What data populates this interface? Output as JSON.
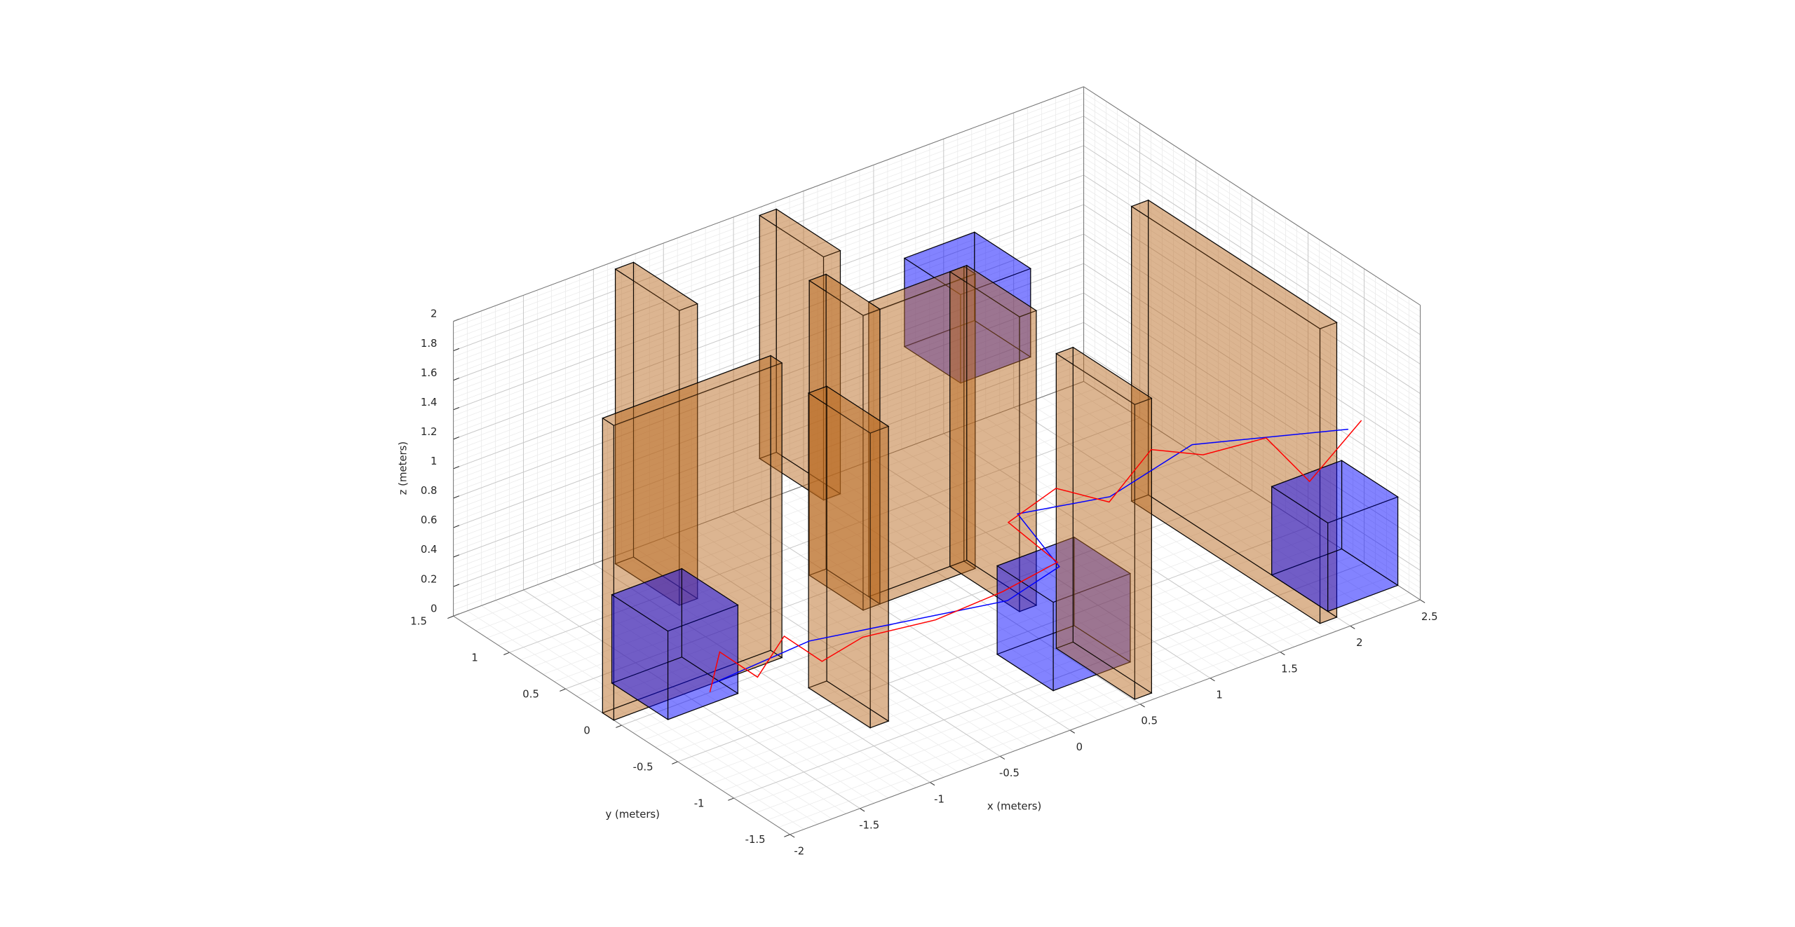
{
  "chart_data": {
    "type": "line3d",
    "xlabel": "x (meters)",
    "ylabel": "y (meters)",
    "zlabel": "z (meters)",
    "xlim": [
      -2,
      2.5
    ],
    "ylim": [
      -1.5,
      1.5
    ],
    "zlim": [
      0,
      2
    ],
    "xticks": [
      -2,
      -1.5,
      -1,
      -0.5,
      0,
      0.5,
      1,
      1.5,
      2,
      2.5
    ],
    "yticks": [
      -1.5,
      -1,
      -0.5,
      0,
      0.5,
      1,
      1.5
    ],
    "zticks": [
      0,
      0.2,
      0.4,
      0.6,
      0.8,
      1,
      1.2,
      1.4,
      1.6,
      1.8,
      2
    ],
    "grid": true,
    "minor_grid": true,
    "box_alpha": 0.62,
    "boxes": [
      {
        "color": "#b8651b",
        "x": [
          -2,
          -0.8
        ],
        "y": [
          0.07,
          0.17
        ],
        "z": [
          0,
          2
        ]
      },
      {
        "color": "#b8651b",
        "x": [
          -0.89,
          -0.76
        ],
        "y": [
          -0.83,
          -0.28
        ],
        "z": [
          0,
          2
        ]
      },
      {
        "color": "#b8651b",
        "x": [
          -0.9,
          -0.77
        ],
        "y": [
          0.86,
          1.43
        ],
        "z": [
          0,
          2
        ]
      },
      {
        "color": "#b8651b",
        "x": [
          -0.1,
          0.02
        ],
        "y": [
          0.22,
          0.7
        ],
        "z": [
          0,
          2
        ]
      },
      {
        "color": "#b8651b",
        "x": [
          0.02,
          0.7
        ],
        "y": [
          0.22,
          0.32
        ],
        "z": [
          0,
          2
        ]
      },
      {
        "color": "#b8651b",
        "x": [
          0.6,
          0.72
        ],
        "y": [
          -0.3,
          0.32
        ],
        "z": [
          0,
          2
        ]
      },
      {
        "color": "#b8651b",
        "x": [
          0.13,
          0.25
        ],
        "y": [
          0.86,
          1.43
        ],
        "z": [
          0.35,
          2
        ]
      },
      {
        "color": "#b8651b",
        "x": [
          0.51,
          0.63
        ],
        "y": [
          -1.44,
          -0.74
        ],
        "z": [
          0,
          2
        ]
      },
      {
        "color": "#b8651b",
        "x": [
          1.88,
          2.0
        ],
        "y": [
          -1.38,
          0.3
        ],
        "z": [
          0,
          2
        ]
      },
      {
        "color": "#0000ff",
        "x": [
          -1.75,
          -1.25
        ],
        "y": [
          -0.1,
          0.4
        ],
        "z": [
          0,
          0.6
        ]
      },
      {
        "color": "#0000ff",
        "x": [
          0.2,
          0.75
        ],
        "y": [
          -1.1,
          -0.6
        ],
        "z": [
          0,
          0.6
        ]
      },
      {
        "color": "#0000ff",
        "x": [
          0.9,
          1.4
        ],
        "y": [
          0.6,
          1.1
        ],
        "z": [
          1.0,
          1.6
        ]
      },
      {
        "color": "#0000ff",
        "x": [
          2.0,
          2.5
        ],
        "y": [
          -1.3,
          -0.8
        ],
        "z": [
          0,
          0.6
        ]
      }
    ],
    "series": [
      {
        "color": "#0000ff",
        "x": [
          -1.41,
          -0.87,
          0.21,
          0.58,
          0.45,
          0.99,
          1.52,
          2.13
        ],
        "y": [
          -0.06,
          -0.26,
          -0.68,
          -0.68,
          -0.47,
          -0.62,
          -0.69,
          -1.32
        ],
        "z": [
          0.1,
          0.3,
          0.4,
          0.5,
          0.8,
          0.8,
          1.0,
          1.2
        ]
      },
      {
        "color": "#ff0000",
        "x": [
          -1.45,
          -1.3,
          -1.15,
          -1.0,
          -0.85,
          -0.6,
          -0.2,
          0.2,
          0.55,
          0.4,
          0.7,
          1.0,
          1.3,
          1.55,
          1.8,
          1.95,
          2.2
        ],
        "y": [
          -0.1,
          0.0,
          -0.15,
          -0.2,
          -0.35,
          -0.4,
          -0.55,
          -0.65,
          -0.7,
          -0.45,
          -0.5,
          -0.6,
          -0.6,
          -0.75,
          -1.0,
          -1.2,
          -1.35
        ],
        "z": [
          0.08,
          0.25,
          0.1,
          0.35,
          0.2,
          0.3,
          0.35,
          0.45,
          0.55,
          0.75,
          0.9,
          0.75,
          1.0,
          0.95,
          1.1,
          0.85,
          1.25
        ]
      }
    ]
  }
}
